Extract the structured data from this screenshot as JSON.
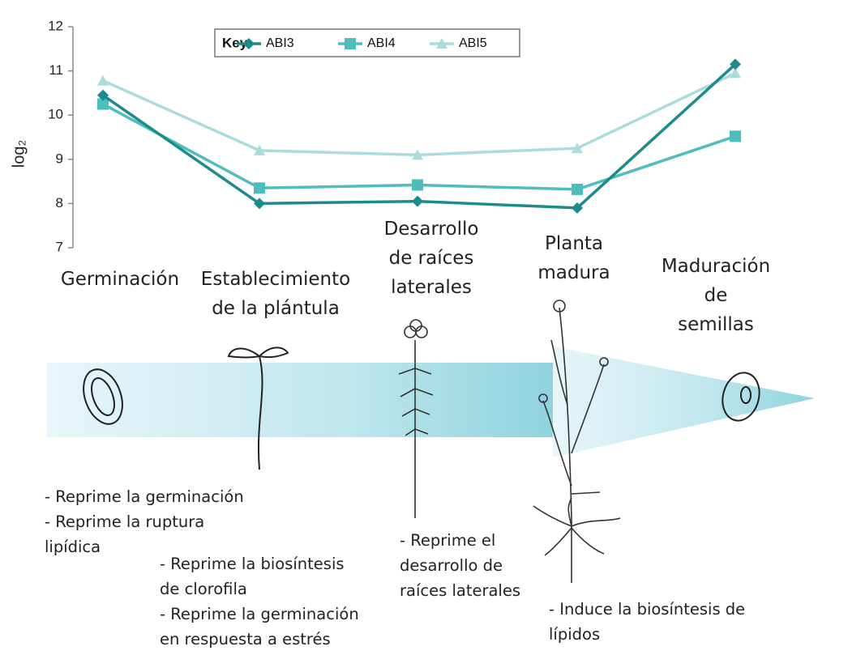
{
  "chart_data": {
    "type": "line",
    "ylabel": "log₂",
    "legend_title": "Key:",
    "categories": [
      "Germinación",
      "Establecimiento\nde la plántula",
      "Desarrollo\nde raíces\nlaterales",
      "Planta\nmadura",
      "Maduración\nde\nsemillas"
    ],
    "series": [
      {
        "name": "ABI3",
        "color": "#1b8b8b",
        "marker": "diamond",
        "values": [
          10.45,
          8.0,
          8.05,
          7.9,
          11.15
        ]
      },
      {
        "name": "ABI4",
        "color": "#4dbdbd",
        "marker": "square",
        "values": [
          10.25,
          8.35,
          8.42,
          8.32,
          9.52
        ]
      },
      {
        "name": "ABI5",
        "color": "#abdcdc",
        "marker": "triangle",
        "values": [
          10.78,
          9.2,
          9.1,
          9.25,
          10.95
        ]
      }
    ],
    "ylim": [
      7,
      12
    ],
    "yticks": [
      7,
      8,
      9,
      10,
      11,
      12
    ],
    "grid": false,
    "legend": "top"
  },
  "annotations": [
    "- Reprime la germinación\n- Reprime la ruptura\nlipídica",
    "- Reprime la biosíntesis\nde clorofila\n- Reprime la germinación\nen respuesta a estrés",
    "- Reprime el\ndesarrollo de\nraíces laterales",
    "- Induce la biosíntesis de\nlípidos"
  ]
}
